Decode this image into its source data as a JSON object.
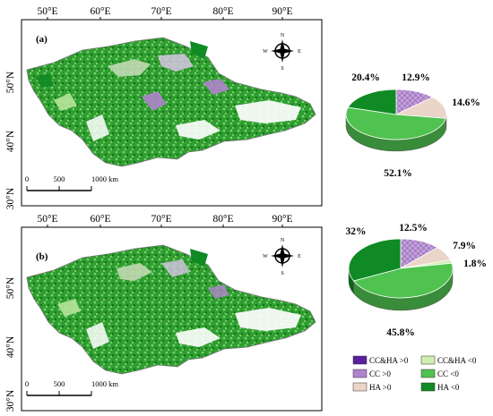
{
  "panels": [
    {
      "label": "(a)",
      "lon_ticks": [
        "50°E",
        "60°E",
        "70°E",
        "80°E",
        "90°E"
      ],
      "lat_ticks": [
        "50°N",
        "40°N",
        "30°N"
      ],
      "scale_labels": [
        "0",
        "500",
        "1000 km"
      ],
      "compass": [
        "N",
        "E",
        "S",
        "W"
      ]
    },
    {
      "label": "(b)",
      "lon_ticks": [
        "50°E",
        "60°E",
        "70°E",
        "80°E",
        "90°E"
      ],
      "lat_ticks": [
        "50°N",
        "40°N",
        "30°N"
      ],
      "scale_labels": [
        "0",
        "500",
        "1000 km"
      ],
      "compass": [
        "N",
        "E",
        "S",
        "W"
      ]
    }
  ],
  "legend": {
    "items": [
      {
        "label": "CC&HA >0",
        "color": "#5b1fa0"
      },
      {
        "label": "CC&HA <0",
        "color": "#cfeeb0"
      },
      {
        "label": "CC >0",
        "color": "#b083cc"
      },
      {
        "label": "CC <0",
        "color": "#4fc24f"
      },
      {
        "label": "HA >0",
        "color": "#ead5c8"
      },
      {
        "label": "HA <0",
        "color": "#0f8a24"
      }
    ]
  },
  "chart_data": [
    {
      "type": "pie",
      "panel": "(a)",
      "slices": [
        {
          "category": "CC >0",
          "value": 12.9,
          "label": "12.9%",
          "color": "#b083cc"
        },
        {
          "category": "HA >0",
          "value": 14.6,
          "label": "14.6%",
          "color": "#ead5c8"
        },
        {
          "category": "CC <0",
          "value": 52.1,
          "label": "52.1%",
          "color": "#4fc24f"
        },
        {
          "category": "HA <0",
          "value": 20.4,
          "label": "20.4%",
          "color": "#0f8a24"
        }
      ]
    },
    {
      "type": "pie",
      "panel": "(b)",
      "slices": [
        {
          "category": "CC >0",
          "value": 12.5,
          "label": "12.5%",
          "color": "#b083cc"
        },
        {
          "category": "HA >0",
          "value": 7.9,
          "label": "7.9%",
          "color": "#ead5c8"
        },
        {
          "category": "CC&HA <0",
          "value": 1.8,
          "label": "1.8%",
          "color": "#cfeeb0"
        },
        {
          "category": "CC <0",
          "value": 45.8,
          "label": "45.8%",
          "color": "#4fc24f"
        },
        {
          "category": "HA <0",
          "value": 32.0,
          "label": "32%",
          "color": "#0f8a24"
        }
      ]
    }
  ]
}
